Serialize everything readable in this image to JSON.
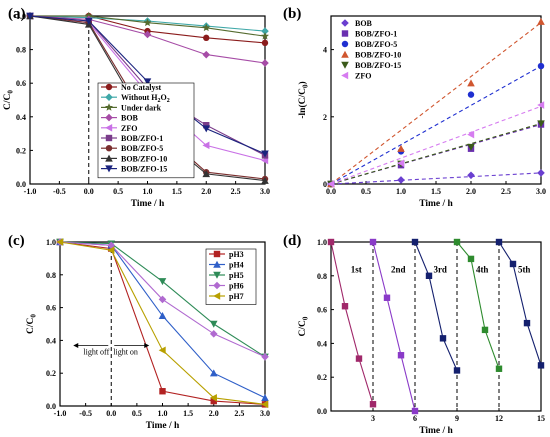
{
  "chart_data": [
    {
      "panel": "(a)",
      "type": "line",
      "xlabel": "Time / h",
      "ylabel": "C/C",
      "ylabel_sub": "0",
      "xlim": [
        -1.0,
        3.0
      ],
      "ylim": [
        0.0,
        1.0
      ],
      "xticks": [
        "-1.0",
        "-0.5",
        "0.0",
        "0.5",
        "1.0",
        "1.5",
        "2.0",
        "2.5",
        "3.0"
      ],
      "yticks": [
        "0.0",
        "0.2",
        "0.4",
        "0.6",
        "0.8",
        "1.0"
      ],
      "x": [
        -1,
        0,
        1,
        2,
        3
      ],
      "vline_x": 0,
      "series": [
        {
          "name": "No Catalyst",
          "color": "#8b1c1c",
          "marker": "circle",
          "values": [
            1.0,
            1.0,
            0.91,
            0.87,
            0.84
          ]
        },
        {
          "name": "Without H",
          "name_sub": "2",
          "name_tail": "O",
          "name_sub2": "2",
          "color": "#3fa8a8",
          "marker": "diamond",
          "values": [
            1.0,
            0.99,
            0.97,
            0.94,
            0.91
          ]
        },
        {
          "name": "Under dark",
          "color": "#556b2f",
          "marker": "star",
          "values": [
            1.0,
            1.0,
            0.96,
            0.93,
            0.88
          ]
        },
        {
          "name": "BOB",
          "color": "#a64ca6",
          "marker": "diamond",
          "values": [
            1.0,
            0.98,
            0.89,
            0.77,
            0.72
          ]
        },
        {
          "name": "ZFO",
          "color": "#c971e6",
          "marker": "tri-left",
          "values": [
            1.0,
            0.96,
            0.54,
            0.23,
            0.14
          ]
        },
        {
          "name": "BOB/ZFO-1",
          "color": "#7a3c8a",
          "marker": "square",
          "values": [
            1.0,
            0.97,
            0.57,
            0.35,
            0.17
          ]
        },
        {
          "name": "BOB/ZFO-5",
          "color": "#7a2f2f",
          "marker": "circle",
          "values": [
            1.0,
            0.96,
            0.38,
            0.07,
            0.03
          ]
        },
        {
          "name": "BOB/ZFO-10",
          "color": "#333333",
          "marker": "tri-up",
          "values": [
            1.0,
            0.95,
            0.35,
            0.06,
            0.02
          ]
        },
        {
          "name": "BOB/ZFO-15",
          "color": "#1a237e",
          "marker": "tri-down",
          "values": [
            1.0,
            0.97,
            0.61,
            0.33,
            0.18
          ]
        }
      ]
    },
    {
      "panel": "(b)",
      "type": "scatter",
      "xlabel": "Time / h",
      "ylabel": "-ln(C/C",
      "ylabel_sub": "0",
      "ylabel_tail": ")",
      "xlim": [
        0.0,
        3.0
      ],
      "ylim": [
        0,
        5
      ],
      "xticks": [
        "0.0",
        "0.5",
        "1.0",
        "1.5",
        "2.0",
        "2.5",
        "3.0"
      ],
      "yticks": [
        "0",
        "2",
        "4"
      ],
      "x": [
        0,
        1,
        2,
        3
      ],
      "series": [
        {
          "name": "BOB",
          "color": "#6a3fd0",
          "marker": "diamond",
          "values": [
            0,
            0.12,
            0.26,
            0.33
          ],
          "fit_slope": 0.11
        },
        {
          "name": "BOB/ZFO-1",
          "color": "#6a2fb0",
          "marker": "square",
          "values": [
            0,
            0.56,
            1.05,
            1.77
          ],
          "fit_slope": 0.59
        },
        {
          "name": "BOB/ZFO-5",
          "color": "#1f2fd0",
          "marker": "circle",
          "values": [
            0,
            0.97,
            2.66,
            3.51
          ],
          "fit_slope": 1.17
        },
        {
          "name": "BOB/ZFO-10",
          "color": "#d0562f",
          "marker": "tri-up",
          "values": [
            0,
            1.05,
            3.0,
            4.83
          ],
          "fit_slope": 1.6
        },
        {
          "name": "BOB/ZFO-15",
          "color": "#3b5a1a",
          "marker": "tri-down",
          "values": [
            0,
            0.6,
            1.1,
            1.8
          ],
          "fit_slope": 0.6
        },
        {
          "name": "ZFO",
          "color": "#d67cf0",
          "marker": "tri-left",
          "values": [
            0,
            0.62,
            1.47,
            2.35
          ],
          "fit_slope": 0.77
        }
      ]
    },
    {
      "panel": "(c)",
      "type": "line",
      "xlabel": "Time / h",
      "ylabel": "C/C",
      "ylabel_sub": "0",
      "xlim": [
        -1.0,
        3.0
      ],
      "ylim": [
        0.0,
        1.0
      ],
      "xticks": [
        "-1.0",
        "-0.5",
        "0.0",
        "0.5",
        "1.0",
        "1.5",
        "2.0",
        "2.5",
        "3.0"
      ],
      "yticks": [
        "0.0",
        "0.2",
        "0.4",
        "0.6",
        "0.8",
        "1.0"
      ],
      "x": [
        -1,
        0,
        1,
        2,
        3
      ],
      "vline_x": 0,
      "annotation_left": "light off",
      "annotation_right": "light on",
      "series": [
        {
          "name": "pH3",
          "color": "#b22222",
          "marker": "square",
          "values": [
            1.0,
            0.96,
            0.09,
            0.03,
            0.01
          ]
        },
        {
          "name": "pH4",
          "color": "#2f5fc8",
          "marker": "tri-up",
          "values": [
            1.0,
            0.98,
            0.55,
            0.2,
            0.05
          ]
        },
        {
          "name": "pH5",
          "color": "#2e8b57",
          "marker": "tri-down",
          "values": [
            1.0,
            0.99,
            0.76,
            0.5,
            0.3
          ]
        },
        {
          "name": "pH6",
          "color": "#b06ad0",
          "marker": "diamond",
          "values": [
            1.0,
            0.98,
            0.65,
            0.44,
            0.3
          ]
        },
        {
          "name": "pH7",
          "color": "#b8a000",
          "marker": "tri-left",
          "values": [
            1.0,
            0.95,
            0.34,
            0.05,
            0.01
          ]
        }
      ]
    },
    {
      "panel": "(d)",
      "type": "line",
      "xlabel": "Time / h",
      "ylabel": "C/C",
      "ylabel_sub": "0",
      "xlim": [
        0,
        15
      ],
      "ylim": [
        0.0,
        1.0
      ],
      "xticks": [
        "3",
        "6",
        "9",
        "12",
        "15"
      ],
      "xtick_values": [
        3,
        6,
        9,
        12,
        15
      ],
      "yticks": [
        "0.0",
        "0.2",
        "0.4",
        "0.6",
        "0.8",
        "1.0"
      ],
      "vlines_x": [
        3,
        6,
        9,
        12
      ],
      "runs": [
        {
          "label": "1st",
          "color": "#a0286a",
          "x": [
            0,
            1,
            2,
            3
          ],
          "values": [
            1.0,
            0.62,
            0.31,
            0.04
          ]
        },
        {
          "label": "2nd",
          "color": "#8a3ac8",
          "x": [
            3,
            4,
            5,
            6
          ],
          "values": [
            1.0,
            0.67,
            0.33,
            0.0
          ]
        },
        {
          "label": "3rd",
          "color": "#14206e",
          "x": [
            6,
            7,
            8,
            9
          ],
          "values": [
            1.0,
            0.8,
            0.43,
            0.24
          ]
        },
        {
          "label": "4th",
          "color": "#2e8b2e",
          "x": [
            9,
            10,
            11,
            12
          ],
          "values": [
            1.0,
            0.9,
            0.48,
            0.25
          ]
        },
        {
          "label": "5th",
          "color": "#14206e",
          "x": [
            12,
            13,
            14,
            15
          ],
          "values": [
            1.0,
            0.87,
            0.52,
            0.27
          ]
        }
      ]
    }
  ]
}
